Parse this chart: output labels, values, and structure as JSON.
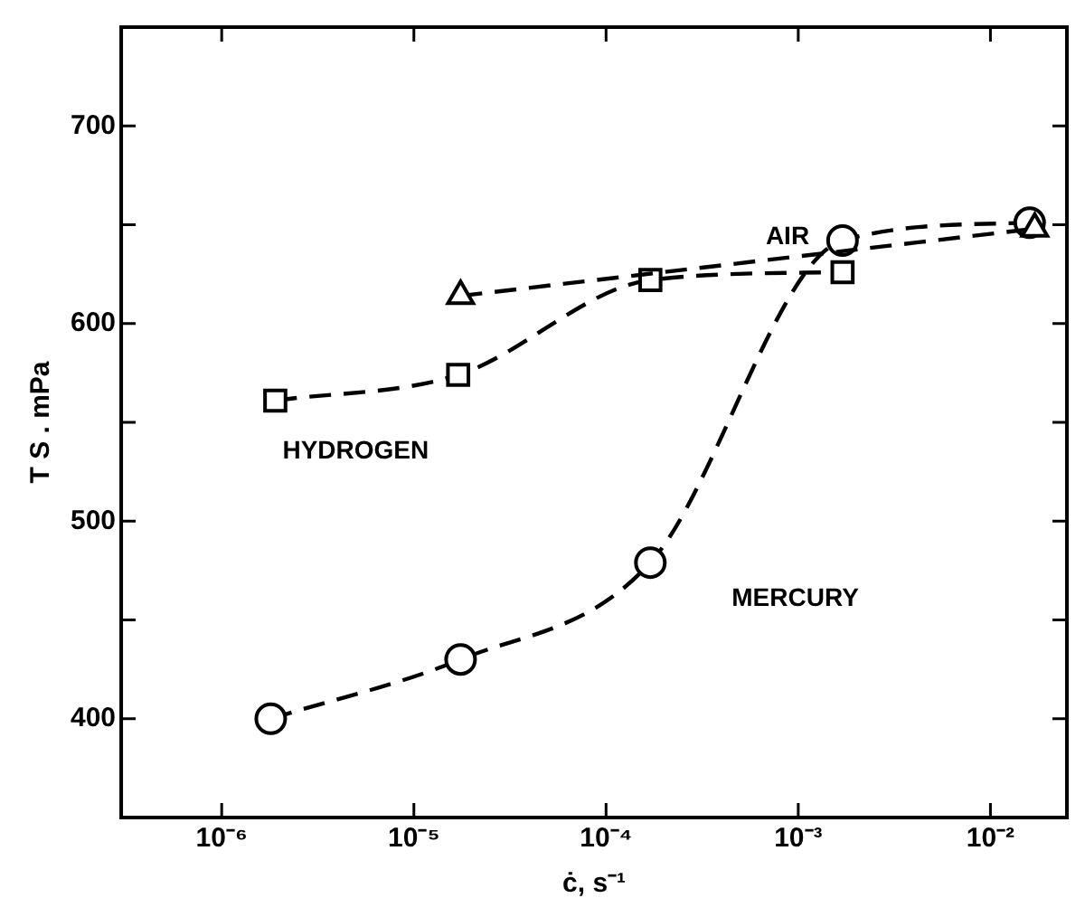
{
  "chart_data": {
    "type": "line",
    "xlabel": "ċ, s⁻¹",
    "ylabel": "T S . mPa",
    "log": "x",
    "grid": false,
    "legend": false,
    "line_style": "dashed",
    "xlim": [
      3e-07,
      0.025
    ],
    "xticks": [
      {
        "value": 1e-06,
        "label": "10⁻⁶"
      },
      {
        "value": 1e-05,
        "label": "10⁻⁵"
      },
      {
        "value": 0.0001,
        "label": "10⁻⁴"
      },
      {
        "value": 0.001,
        "label": "10⁻³"
      },
      {
        "value": 0.01,
        "label": "10⁻²"
      }
    ],
    "ylim": [
      350,
      750
    ],
    "yticks": [
      400,
      {
        "value": 450,
        "label": null
      },
      500,
      {
        "value": 550,
        "label": null
      },
      600,
      {
        "value": 650,
        "label": null
      },
      700
    ],
    "series": [
      {
        "name": "AIR",
        "color": "#000000",
        "marker": "triangle",
        "x": [
          1.75e-05,
          0.017
        ],
        "values": [
          614,
          648
        ]
      },
      {
        "name": "HYDROGEN",
        "color": "#000000",
        "marker": "square",
        "x": [
          1.9e-06,
          1.7e-05,
          0.00017,
          0.0017
        ],
        "values": [
          561,
          574,
          622,
          626
        ]
      },
      {
        "name": "MERCURY",
        "color": "#000000",
        "marker": "circle",
        "x": [
          1.8e-06,
          1.75e-05,
          0.00017,
          0.0017,
          0.016
        ],
        "values": [
          400,
          430,
          479,
          642,
          651
        ]
      }
    ]
  }
}
